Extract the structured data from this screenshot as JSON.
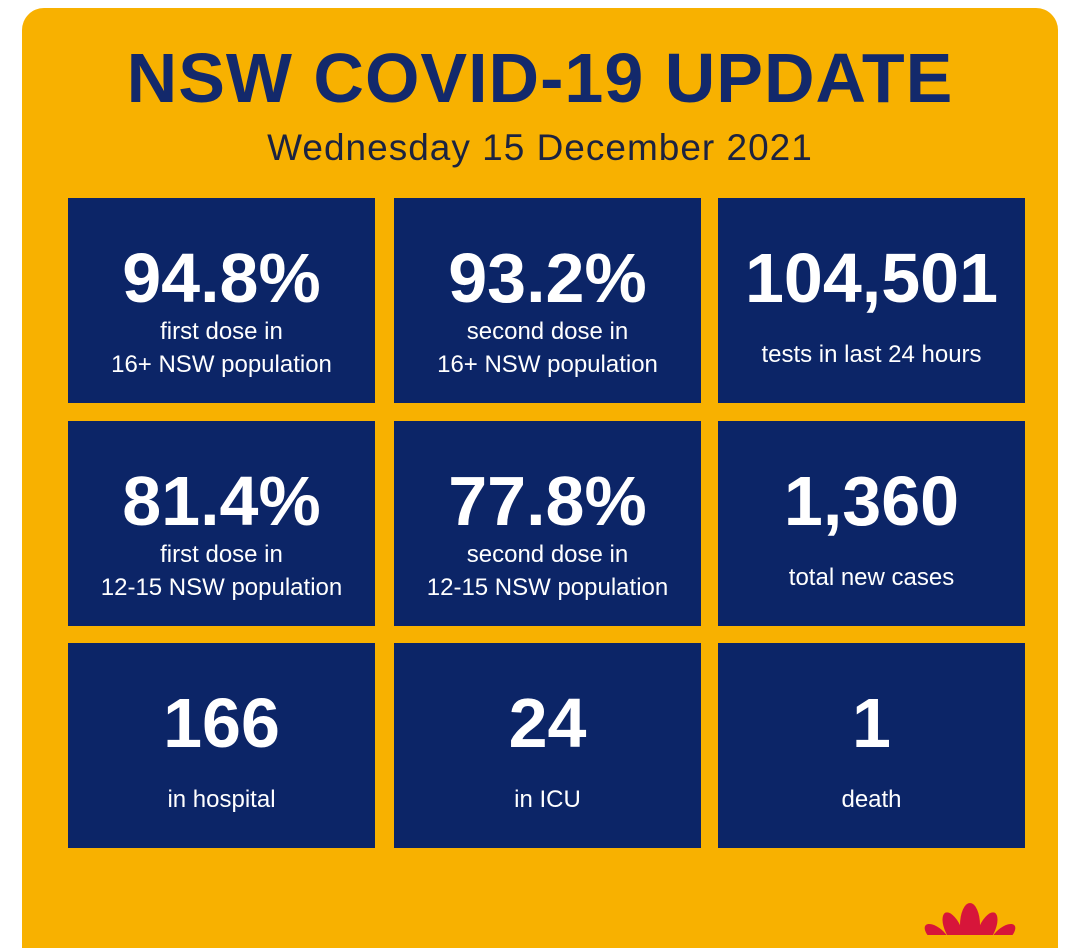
{
  "header": {
    "title": "NSW COVID-19 UPDATE",
    "date": "Wednesday 15 December 2021"
  },
  "tiles": [
    {
      "value": "94.8%",
      "label": [
        "first dose in",
        "16+ NSW population"
      ]
    },
    {
      "value": "93.2%",
      "label": [
        "second dose in",
        "16+ NSW population"
      ]
    },
    {
      "value": "104,501",
      "label": [
        "tests in last 24 hours"
      ]
    },
    {
      "value": "81.4%",
      "label": [
        "first dose in",
        "12-15 NSW population"
      ]
    },
    {
      "value": "77.8%",
      "label": [
        "second dose in",
        "12-15 NSW population"
      ]
    },
    {
      "value": "1,360",
      "label": [
        "total new cases"
      ]
    },
    {
      "value": "166",
      "label": [
        "in hospital"
      ]
    },
    {
      "value": "24",
      "label": [
        "in ICU"
      ]
    },
    {
      "value": "1",
      "label": [
        "death"
      ]
    }
  ]
}
